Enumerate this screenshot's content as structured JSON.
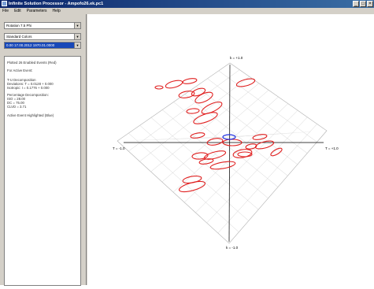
{
  "window": {
    "title": "Infinite Solution Processor - Ampofo26.ek.pc1",
    "btn_min": "_",
    "btn_max": "□",
    "btn_close": "×"
  },
  "menu": [
    "File",
    "Edit",
    "Parameters",
    "Help"
  ],
  "panel": {
    "dropdown1": "Rotation 7.5 Phi",
    "dropdown2": "Standard Colors",
    "dropdown3": "0.00  17.00.2012  1970.01.0000",
    "info": {
      "line1": "Plotted 26 Enabled Events (Red)",
      "line2": "For Active Event:",
      "line3": "T-U Decomposition",
      "line4": "Deviations: T = 0.0128 + 0.000",
      "line5": "Isotropic: I = 0.1776 + 0.000",
      "line6": "Percentage Decomposition:",
      "line7": "ISO = 28.00",
      "line8": "DC = 75.00",
      "line9": "CLVD = 3.71",
      "line10": "Active Event Highlighted (Blue)"
    }
  },
  "plot": {
    "labels": {
      "top": "k = +1.0",
      "left": "T = -1.0",
      "right": "T = +1.0",
      "bottom": "k = -1.0"
    },
    "colors": {
      "enabled": "#e02020",
      "active": "#2030e0",
      "grid": "#c8c8c8",
      "axis": "#000000"
    }
  }
}
